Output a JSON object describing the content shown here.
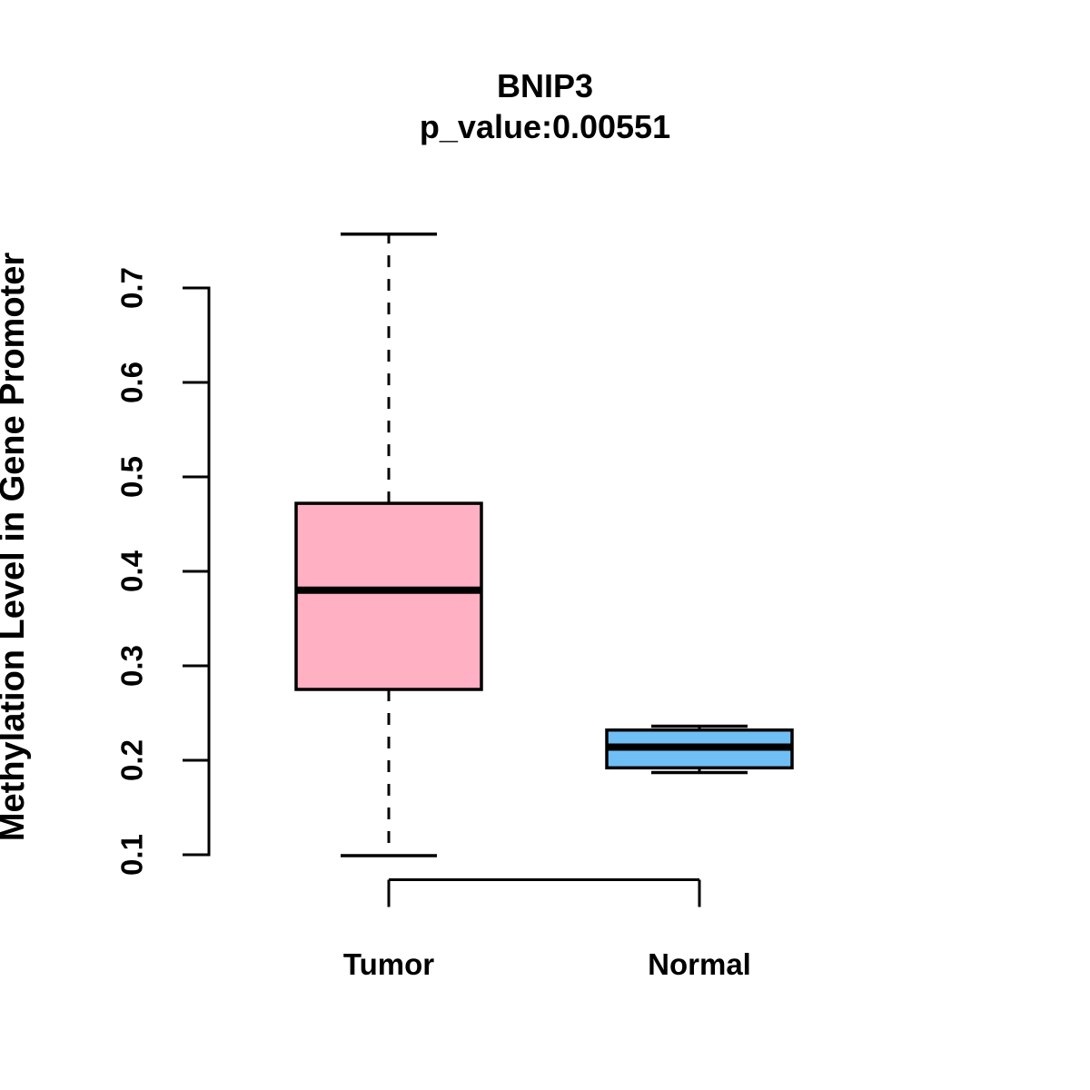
{
  "figure": {
    "background_color": "#ffffff",
    "stroke_color": "#000000"
  },
  "chart_data": {
    "type": "boxplot",
    "title": "BNIP3",
    "subtitle": "p_value:0.00551",
    "xlabel": "",
    "ylabel": "Methylation Level in Gene Promoter",
    "categories": [
      "Tumor",
      "Normal"
    ],
    "y_axis": {
      "ticks": [
        0.1,
        0.2,
        0.3,
        0.4,
        0.5,
        0.6,
        0.7
      ],
      "tick_labels": [
        "0.1",
        "0.2",
        "0.3",
        "0.4",
        "0.5",
        "0.6",
        "0.7"
      ],
      "range_shown": [
        0.1,
        0.7
      ]
    },
    "grid": false,
    "legend": "none",
    "series": [
      {
        "name": "Tumor",
        "fill_color": "#FFB0C3",
        "whisker_low": 0.099,
        "q1": 0.275,
        "median": 0.38,
        "q3": 0.472,
        "whisker_high": 0.757,
        "outliers": []
      },
      {
        "name": "Normal",
        "fill_color": "#6FBFF5",
        "whisker_low": 0.187,
        "q1": 0.192,
        "median": 0.214,
        "q3": 0.232,
        "whisker_high": 0.236,
        "outliers": []
      }
    ]
  }
}
